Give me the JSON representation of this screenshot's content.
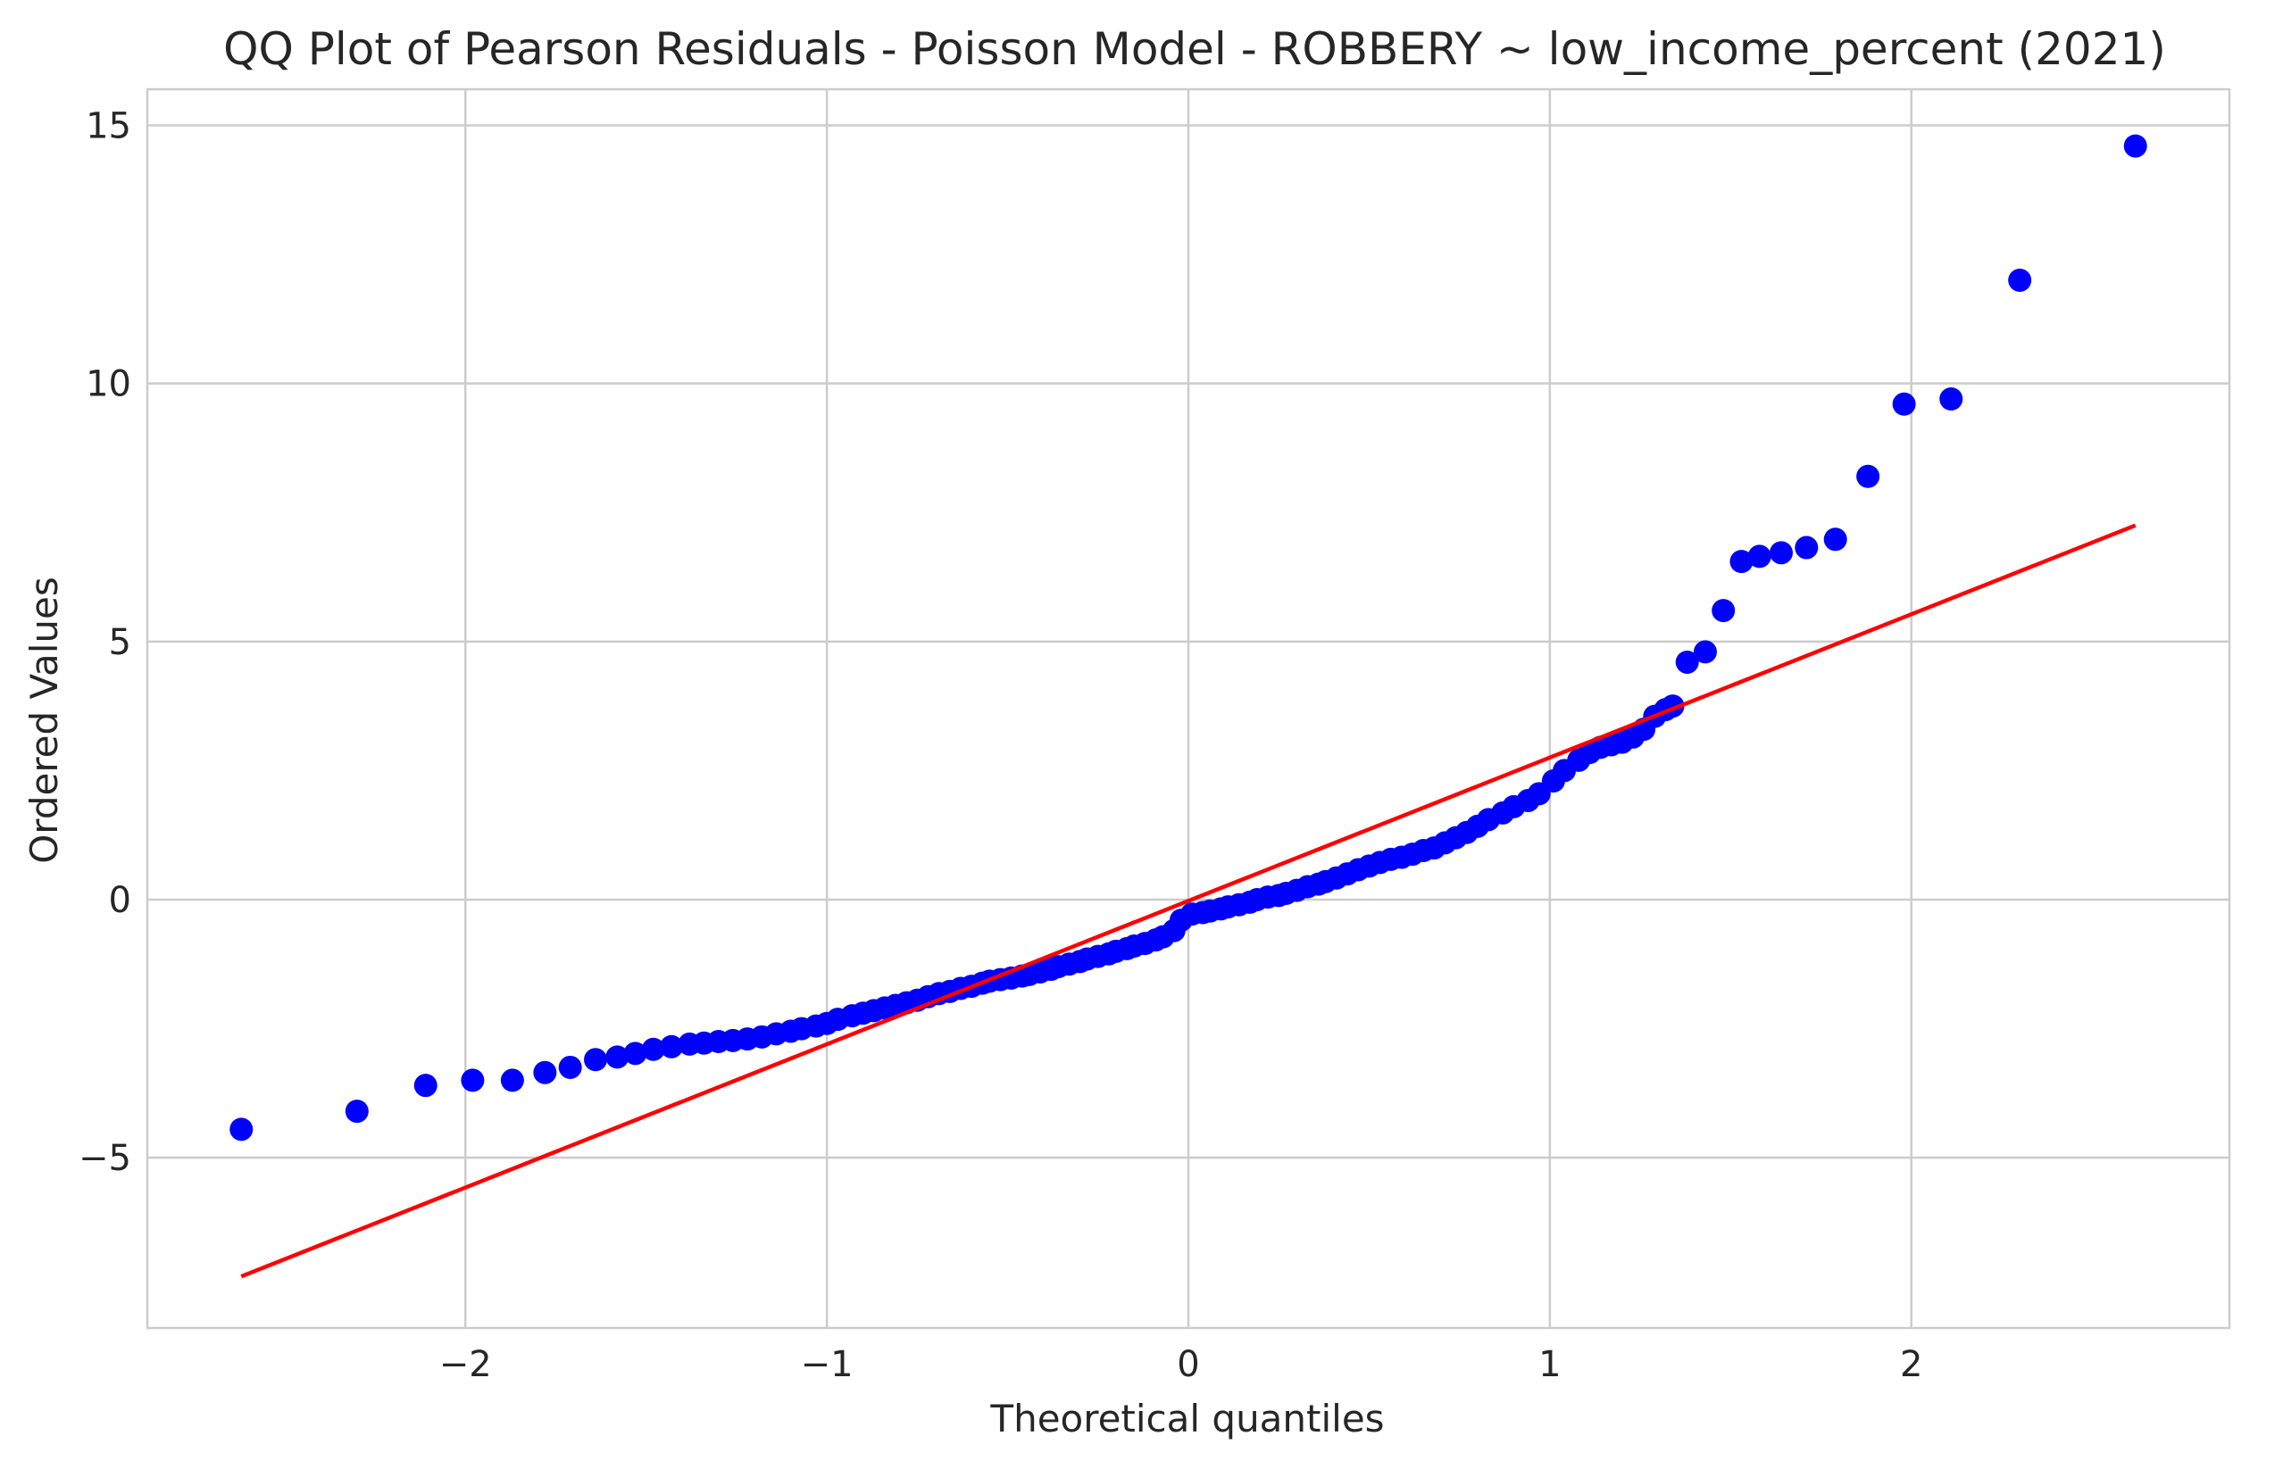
{
  "chart_data": {
    "type": "scatter",
    "title": "QQ Plot of Pearson Residuals - Poisson Model - ROBBERY ~ low_income_percent (2021)",
    "xlabel": "Theoretical quantiles",
    "ylabel": "Ordered Values",
    "xlim": [
      -2.88,
      2.88
    ],
    "ylim": [
      -8.3,
      15.7
    ],
    "x_ticks": [
      -2,
      -1,
      0,
      1,
      2
    ],
    "x_tick_labels": [
      "−2",
      "−1",
      "0",
      "1",
      "2"
    ],
    "y_ticks": [
      -5,
      0,
      5,
      10,
      15
    ],
    "y_tick_labels": [
      "−5",
      "0",
      "5",
      "10",
      "15"
    ],
    "grid": true,
    "marker_color": "#0000ff",
    "line_color": "#ff0000",
    "series": [
      {
        "kind": "points",
        "x": [
          -2.62,
          -2.3,
          -2.11,
          -1.98,
          -1.87,
          -1.78,
          -1.71,
          -1.64,
          -1.58,
          -1.53,
          -1.48,
          -1.43,
          -1.38,
          -1.34,
          -1.3,
          -1.26,
          -1.22,
          -1.18,
          -1.14,
          -1.1,
          -1.07,
          -1.03,
          -1.0,
          -0.97,
          -0.93,
          -0.9,
          -0.87,
          -0.84,
          -0.81,
          -0.78,
          -0.75,
          -0.72,
          -0.69,
          -0.66,
          -0.63,
          -0.6,
          -0.57,
          -0.55,
          -0.52,
          -0.49,
          -0.46,
          -0.44,
          -0.41,
          -0.38,
          -0.36,
          -0.33,
          -0.3,
          -0.28,
          -0.25,
          -0.22,
          -0.2,
          -0.17,
          -0.15,
          -0.12,
          -0.09,
          -0.07,
          -0.04,
          -0.02,
          0.01,
          0.04,
          0.06,
          0.09,
          0.11,
          0.14,
          0.17,
          0.19,
          0.22,
          0.25,
          0.27,
          0.3,
          0.33,
          0.36,
          0.38,
          0.41,
          0.44,
          0.47,
          0.5,
          0.53,
          0.56,
          0.59,
          0.62,
          0.65,
          0.68,
          0.71,
          0.74,
          0.77,
          0.8,
          0.83,
          0.87,
          0.9,
          0.94,
          0.97,
          1.01,
          1.04,
          1.08,
          1.11,
          1.14,
          1.17,
          1.2,
          1.23,
          1.26,
          1.29,
          1.32,
          1.34,
          1.38,
          1.43,
          1.48,
          1.53,
          1.58,
          1.64,
          1.71,
          1.79,
          1.88,
          1.98,
          2.11,
          2.3,
          2.62
        ],
        "y": [
          -4.45,
          -4.1,
          -3.6,
          -3.5,
          -3.5,
          -3.35,
          -3.25,
          -3.1,
          -3.05,
          -2.98,
          -2.9,
          -2.85,
          -2.8,
          -2.78,
          -2.75,
          -2.73,
          -2.7,
          -2.66,
          -2.6,
          -2.55,
          -2.5,
          -2.45,
          -2.4,
          -2.32,
          -2.25,
          -2.2,
          -2.15,
          -2.1,
          -2.05,
          -2.0,
          -1.95,
          -1.88,
          -1.82,
          -1.78,
          -1.72,
          -1.68,
          -1.62,
          -1.58,
          -1.55,
          -1.52,
          -1.48,
          -1.45,
          -1.4,
          -1.35,
          -1.3,
          -1.25,
          -1.2,
          -1.15,
          -1.1,
          -1.05,
          -1.0,
          -0.95,
          -0.9,
          -0.85,
          -0.78,
          -0.72,
          -0.6,
          -0.4,
          -0.28,
          -0.25,
          -0.22,
          -0.18,
          -0.14,
          -0.1,
          -0.05,
          0.0,
          0.05,
          0.08,
          0.12,
          0.18,
          0.25,
          0.3,
          0.35,
          0.42,
          0.5,
          0.58,
          0.65,
          0.72,
          0.78,
          0.82,
          0.88,
          0.95,
          1.0,
          1.1,
          1.2,
          1.3,
          1.42,
          1.55,
          1.68,
          1.8,
          1.92,
          2.05,
          2.3,
          2.5,
          2.7,
          2.85,
          2.95,
          3.0,
          3.05,
          3.15,
          3.3,
          3.55,
          3.68,
          3.75,
          4.6,
          4.8,
          5.6,
          6.55,
          6.65,
          6.72,
          6.82,
          6.98,
          8.2,
          9.6,
          9.7,
          12.0,
          14.6
        ]
      },
      {
        "kind": "fit-line",
        "x": [
          -2.62,
          2.62
        ],
        "y": [
          -7.3,
          7.25
        ]
      }
    ]
  }
}
